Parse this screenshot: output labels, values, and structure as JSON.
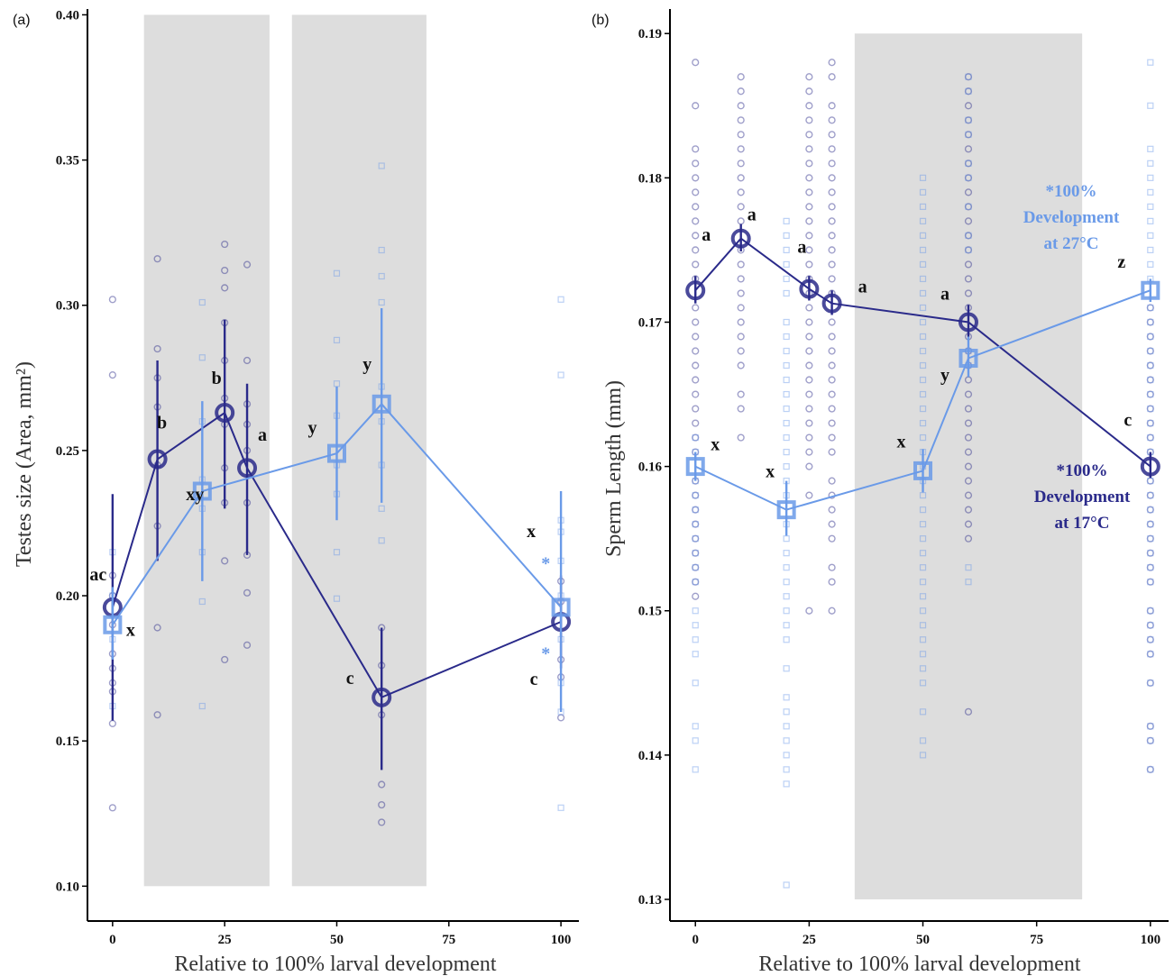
{
  "colors": {
    "dark": "#2a2a8a",
    "light": "#6a9ae8",
    "shade": "#dddddd"
  },
  "chart_data": [
    {
      "panel": "(a)",
      "type": "line",
      "xlabel": "Relative to 100% larval development",
      "ylabel": "Testes size (Area, mm²)",
      "xlim": [
        -5,
        104
      ],
      "ylim": [
        0.088,
        0.402
      ],
      "xticks": [
        0,
        25,
        50,
        75,
        100
      ],
      "yticks": [
        0.1,
        0.15,
        0.2,
        0.25,
        0.3,
        0.35,
        0.4
      ],
      "ytick_labels": [
        "0.10",
        "0.15",
        "0.20",
        "0.25",
        "0.30",
        "0.35",
        "0.40"
      ],
      "shaded_x_ranges": [
        [
          7,
          35
        ],
        [
          40,
          70
        ]
      ],
      "series": [
        {
          "key": "dark",
          "marker": "circle",
          "x": [
            0,
            10,
            25,
            30,
            60,
            100
          ],
          "y": [
            0.196,
            0.247,
            0.263,
            0.244,
            0.165,
            0.191
          ],
          "err_low": [
            0.157,
            0.212,
            0.23,
            0.214,
            0.14,
            0.175
          ],
          "err_high": [
            0.235,
            0.281,
            0.295,
            0.273,
            0.189,
            0.207
          ],
          "letters": [
            "ac",
            "b",
            "b",
            "a",
            "c",
            "c"
          ],
          "raw": [
            [
              0,
              [
                0.127,
                0.156,
                0.167,
                0.17,
                0.175,
                0.18,
                0.19,
                0.2,
                0.207,
                0.276,
                0.302
              ]
            ],
            [
              10,
              [
                0.159,
                0.189,
                0.224,
                0.245,
                0.265,
                0.275,
                0.285,
                0.316
              ]
            ],
            [
              25,
              [
                0.178,
                0.212,
                0.232,
                0.244,
                0.259,
                0.268,
                0.281,
                0.294,
                0.306,
                0.312,
                0.321
              ]
            ],
            [
              30,
              [
                0.183,
                0.201,
                0.214,
                0.232,
                0.25,
                0.259,
                0.266,
                0.281,
                0.314
              ]
            ],
            [
              60,
              [
                0.122,
                0.128,
                0.135,
                0.159,
                0.176,
                0.189
              ]
            ],
            [
              100,
              [
                0.158,
                0.172,
                0.178,
                0.198,
                0.205
              ]
            ]
          ]
        },
        {
          "key": "light",
          "marker": "square",
          "x": [
            0,
            20,
            50,
            60,
            100
          ],
          "y": [
            0.19,
            0.236,
            0.249,
            0.266,
            0.196
          ],
          "err_low": [
            0.178,
            0.205,
            0.226,
            0.232,
            0.16
          ],
          "err_high": [
            0.203,
            0.267,
            0.272,
            0.299,
            0.236
          ],
          "letters": [
            "x",
            "xy",
            "y",
            "y",
            "x"
          ],
          "raw": [
            [
              0,
              [
                0.162,
                0.185,
                0.2,
                0.215
              ]
            ],
            [
              20,
              [
                0.162,
                0.198,
                0.215,
                0.23,
                0.24,
                0.26,
                0.282,
                0.301
              ]
            ],
            [
              50,
              [
                0.199,
                0.215,
                0.235,
                0.245,
                0.262,
                0.273,
                0.288,
                0.311
              ]
            ],
            [
              60,
              [
                0.219,
                0.23,
                0.245,
                0.26,
                0.272,
                0.301,
                0.31,
                0.319,
                0.348
              ]
            ],
            [
              100,
              [
                0.127,
                0.16,
                0.17,
                0.185,
                0.2,
                0.212,
                0.222,
                0.226,
                0.276,
                0.302
              ]
            ]
          ]
        }
      ],
      "annotations": [
        {
          "text": "*",
          "color_key": "light",
          "x": 96,
          "y": 0.212
        },
        {
          "text": "*",
          "color_key": "light",
          "x": 96,
          "y": 0.181
        }
      ]
    },
    {
      "panel": "(b)",
      "type": "line",
      "xlabel": "Relative to 100% larval development",
      "ylabel": "Sperm Length (mm)",
      "xlim": [
        -5,
        104
      ],
      "ylim": [
        0.1285,
        0.1917
      ],
      "xticks": [
        0,
        25,
        50,
        75,
        100
      ],
      "yticks": [
        0.13,
        0.14,
        0.15,
        0.16,
        0.17,
        0.18,
        0.19
      ],
      "ytick_labels": [
        "0.13",
        "0.14",
        "0.15",
        "0.16",
        "0.17",
        "0.18",
        "0.19"
      ],
      "shaded_x_ranges": [
        [
          35,
          85
        ]
      ],
      "series": [
        {
          "key": "dark",
          "marker": "circle",
          "x": [
            0,
            10,
            25,
            30,
            60,
            100
          ],
          "y": [
            0.1722,
            0.1758,
            0.1723,
            0.1713,
            0.17,
            0.16
          ],
          "err_low": [
            0.1713,
            0.1749,
            0.1715,
            0.1705,
            0.169,
            0.1592
          ],
          "err_high": [
            0.1732,
            0.1768,
            0.1732,
            0.1722,
            0.1712,
            0.161
          ],
          "letters": [
            "a",
            "a",
            "a",
            "a",
            "a",
            "c"
          ],
          "raw": [
            [
              0,
              [
                0.151,
                0.152,
                0.153,
                0.154,
                0.155,
                0.156,
                0.157,
                0.158,
                0.159,
                0.161,
                0.162,
                0.163,
                0.164,
                0.165,
                0.166,
                0.167,
                0.168,
                0.169,
                0.17,
                0.171,
                0.173,
                0.174,
                0.175,
                0.176,
                0.177,
                0.178,
                0.179,
                0.18,
                0.181,
                0.182,
                0.185,
                0.188
              ]
            ],
            [
              10,
              [
                0.162,
                0.164,
                0.165,
                0.167,
                0.168,
                0.169,
                0.17,
                0.171,
                0.172,
                0.173,
                0.174,
                0.175,
                0.177,
                0.178,
                0.179,
                0.18,
                0.181,
                0.182,
                0.183,
                0.184,
                0.185,
                0.186,
                0.187
              ]
            ],
            [
              25,
              [
                0.15,
                0.158,
                0.16,
                0.161,
                0.162,
                0.163,
                0.164,
                0.165,
                0.166,
                0.167,
                0.168,
                0.169,
                0.17,
                0.171,
                0.172,
                0.173,
                0.174,
                0.175,
                0.176,
                0.177,
                0.178,
                0.179,
                0.18,
                0.181,
                0.182,
                0.183,
                0.184,
                0.185,
                0.186,
                0.187
              ]
            ],
            [
              30,
              [
                0.15,
                0.152,
                0.153,
                0.155,
                0.156,
                0.157,
                0.158,
                0.159,
                0.161,
                0.162,
                0.163,
                0.164,
                0.165,
                0.166,
                0.167,
                0.168,
                0.169,
                0.17,
                0.172,
                0.173,
                0.174,
                0.175,
                0.176,
                0.177,
                0.178,
                0.179,
                0.18,
                0.181,
                0.182,
                0.183,
                0.184,
                0.185,
                0.187,
                0.188
              ]
            ],
            [
              60,
              [
                0.143,
                0.155,
                0.156,
                0.157,
                0.158,
                0.159,
                0.16,
                0.161,
                0.162,
                0.163,
                0.164,
                0.165,
                0.166,
                0.167,
                0.168,
                0.169,
                0.171,
                0.172,
                0.173,
                0.174,
                0.175,
                0.176,
                0.177,
                0.178,
                0.179,
                0.18,
                0.181,
                0.182,
                0.183,
                0.184,
                0.185,
                0.186,
                0.187
              ]
            ],
            [
              100,
              [
                0.139,
                0.141,
                0.142,
                0.145,
                0.147,
                0.148,
                0.149,
                0.15,
                0.152,
                0.153,
                0.154,
                0.155,
                0.156,
                0.157,
                0.158,
                0.159,
                0.161,
                0.162,
                0.163,
                0.164,
                0.165,
                0.166,
                0.167,
                0.168,
                0.169,
                0.17,
                0.171
              ]
            ]
          ]
        },
        {
          "key": "light",
          "marker": "square",
          "x": [
            0,
            20,
            50,
            60,
            100
          ],
          "y": [
            0.16,
            0.157,
            0.1597,
            0.1675,
            0.1722
          ],
          "err_low": [
            0.159,
            0.1552,
            0.1582,
            0.1662,
            0.1714
          ],
          "err_high": [
            0.161,
            0.159,
            0.1612,
            0.169,
            0.173
          ],
          "letters": [
            "x",
            "x",
            "x",
            "y",
            "z"
          ],
          "raw": [
            [
              0,
              [
                0.139,
                0.141,
                0.142,
                0.145,
                0.147,
                0.148,
                0.149,
                0.15,
                0.152,
                0.153,
                0.154,
                0.155,
                0.156,
                0.157,
                0.158,
                0.159,
                0.161,
                0.162
              ]
            ],
            [
              20,
              [
                0.131,
                0.138,
                0.139,
                0.14,
                0.141,
                0.142,
                0.143,
                0.144,
                0.146,
                0.148,
                0.149,
                0.15,
                0.151,
                0.152,
                0.153,
                0.154,
                0.155,
                0.156,
                0.158,
                0.159,
                0.16,
                0.161,
                0.162,
                0.163,
                0.164,
                0.165,
                0.166,
                0.167,
                0.168,
                0.169,
                0.17,
                0.172,
                0.173,
                0.174,
                0.175,
                0.176,
                0.177
              ]
            ],
            [
              50,
              [
                0.14,
                0.141,
                0.143,
                0.145,
                0.146,
                0.147,
                0.148,
                0.149,
                0.15,
                0.151,
                0.152,
                0.153,
                0.154,
                0.155,
                0.156,
                0.157,
                0.158,
                0.159,
                0.16,
                0.161,
                0.162,
                0.163,
                0.164,
                0.165,
                0.166,
                0.167,
                0.168,
                0.169,
                0.17,
                0.171,
                0.172,
                0.173,
                0.174,
                0.175,
                0.176,
                0.177,
                0.178,
                0.179,
                0.18
              ]
            ],
            [
              60,
              [
                0.152,
                0.153,
                0.167,
                0.168,
                0.175,
                0.176,
                0.178,
                0.18,
                0.181,
                0.183,
                0.184,
                0.186,
                0.187
              ]
            ],
            [
              100,
              [
                0.139,
                0.141,
                0.142,
                0.145,
                0.147,
                0.148,
                0.149,
                0.15,
                0.152,
                0.153,
                0.154,
                0.155,
                0.156,
                0.157,
                0.158,
                0.159,
                0.161,
                0.162,
                0.163,
                0.164,
                0.165,
                0.166,
                0.167,
                0.168,
                0.169,
                0.17,
                0.171,
                0.173,
                0.174,
                0.175,
                0.176,
                0.177,
                0.178,
                0.179,
                0.18,
                0.181,
                0.182,
                0.185,
                0.188
              ]
            ]
          ]
        }
      ],
      "annotations": [
        {
          "lines": [
            "*100%",
            "Development",
            "at 27°C"
          ],
          "color_key": "light"
        },
        {
          "lines": [
            "*100%",
            "Development",
            "at 17°C"
          ],
          "color_key": "dark"
        }
      ]
    }
  ]
}
